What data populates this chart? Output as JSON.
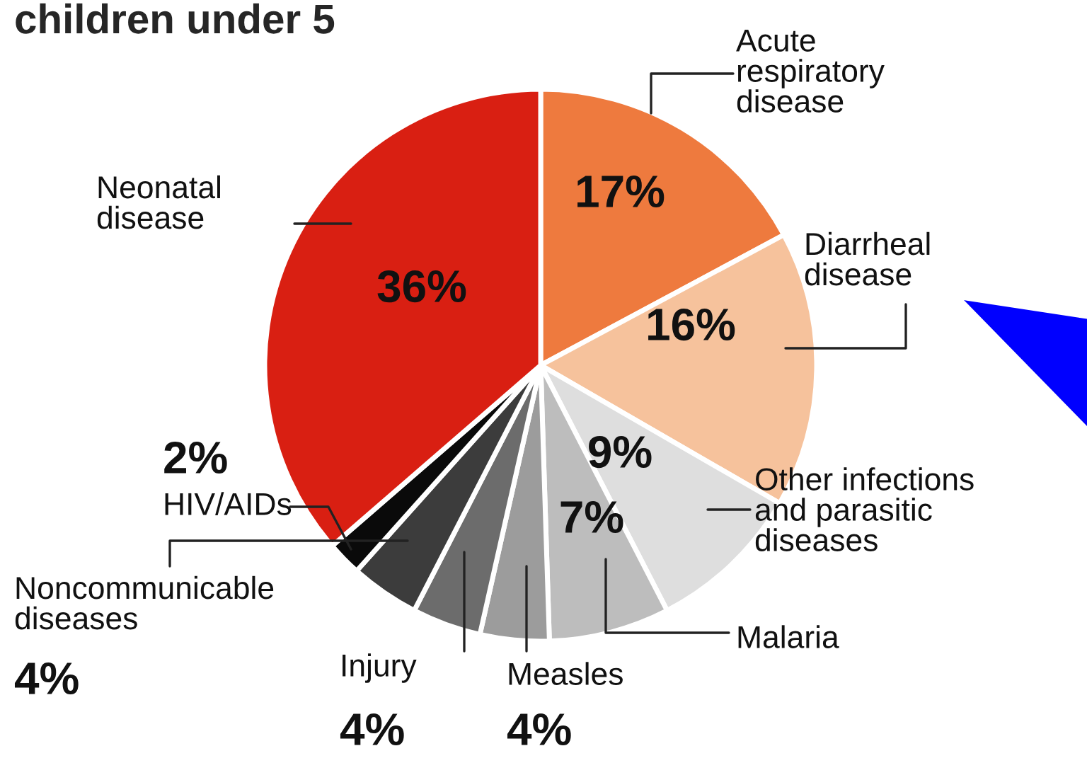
{
  "chart_data": {
    "type": "pie",
    "title": "children under 5",
    "categories": [
      "Acute\nrespiratory\ndisease",
      "Diarrheal\ndisease",
      "Other infections\nand parasitic\ndiseases",
      "Malaria",
      "Measles",
      "Injury",
      "Noncommunicable\ndiseases",
      "HIV/AIDs",
      "Neonatal\ndisease"
    ],
    "values": [
      17,
      16,
      9,
      7,
      4,
      4,
      4,
      2,
      36
    ],
    "value_labels": [
      "17%",
      "16%",
      "9%",
      "7%",
      "4%",
      "4%",
      "4%",
      "2%",
      "36%"
    ],
    "colors": [
      "#ee7a3e",
      "#f6c29c",
      "#dedede",
      "#bdbdbd",
      "#9c9c9c",
      "#6c6c6c",
      "#3c3c3c",
      "#0a0a0a",
      "#d91f12"
    ],
    "legend": false
  }
}
